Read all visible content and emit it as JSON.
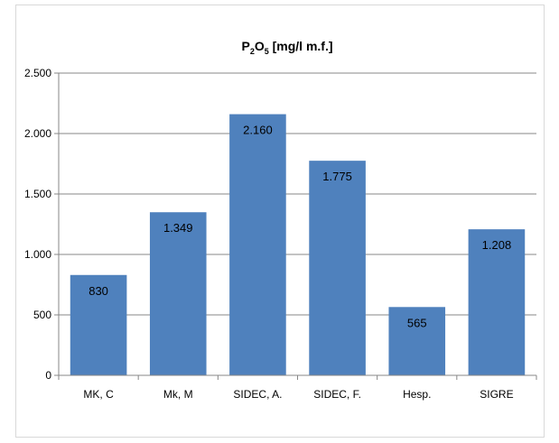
{
  "chart_data": {
    "type": "bar",
    "title": {
      "main": "P",
      "sub1": "2",
      "mid": "O",
      "sub2": "5",
      "unit": " [mg/l m.f.]"
    },
    "categories": [
      "MK, C",
      "Mk, M",
      "SIDEC, A.",
      "SIDEC, F.",
      "Hesp.",
      "SIGRE"
    ],
    "values": [
      830,
      1349,
      2160,
      1775,
      565,
      1208
    ],
    "data_labels": [
      "830",
      "1.349",
      "2.160",
      "1.775",
      "565",
      "1.208"
    ],
    "ylim": [
      0,
      2500
    ],
    "yticks": [
      0,
      500,
      1000,
      1500,
      2000,
      2500
    ],
    "ytick_labels": [
      "0",
      "500",
      "1.000",
      "1.500",
      "2.000",
      "2.500"
    ],
    "grid": true,
    "legend": "none",
    "xlabel": "",
    "ylabel": "",
    "bar_color": "#4f81bd",
    "grid_color": "#878787"
  }
}
